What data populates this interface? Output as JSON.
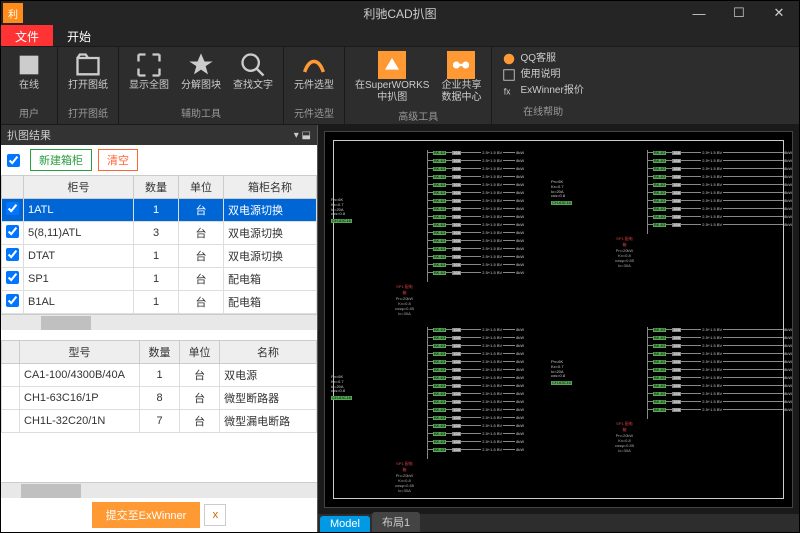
{
  "titlebar": {
    "title": "利驰CAD扒图"
  },
  "ribbon": {
    "tabs": {
      "file": "文件",
      "start": "开始"
    },
    "groups": {
      "user": {
        "online": "在线",
        "open": "打开图纸",
        "label": "用户",
        "label2": "打开图纸"
      },
      "aux": {
        "show": "显示全图",
        "explode": "分解图块",
        "find": "查找文字",
        "label": "辅助工具"
      },
      "type": {
        "btn": "元件选型",
        "label": "元件选型"
      },
      "sw": {
        "btn": "在SuperWORKS\n中扒图",
        "share": "企业共享\n数据中心",
        "label": "高级工具"
      },
      "help": {
        "qq": "QQ客服",
        "manual": "使用说明",
        "exwinner": "ExWinner报价",
        "label": "在线帮助"
      }
    }
  },
  "panel": {
    "title": "扒图结果",
    "new_cabinet": "新建箱柜",
    "clear": "清空",
    "table1": {
      "headers": {
        "col1": "柜号",
        "col2": "数量",
        "col3": "单位",
        "col4": "箱柜名称"
      },
      "rows": [
        {
          "id": "1ATL",
          "qty": "1",
          "unit": "台",
          "name": "双电源切换",
          "selected": true
        },
        {
          "id": "5(8,11)ATL",
          "qty": "3",
          "unit": "台",
          "name": "双电源切换"
        },
        {
          "id": "DTAT",
          "qty": "1",
          "unit": "台",
          "name": "双电源切换"
        },
        {
          "id": "SP1",
          "qty": "1",
          "unit": "台",
          "name": "配电箱"
        },
        {
          "id": "B1AL",
          "qty": "1",
          "unit": "台",
          "name": "配电箱"
        }
      ]
    },
    "table2": {
      "headers": {
        "col1": "型号",
        "col2": "数量",
        "col3": "单位",
        "col4": "名称"
      },
      "rows": [
        {
          "model": "CA1-100/4300B/40A",
          "qty": "1",
          "unit": "台",
          "name": "双电源"
        },
        {
          "model": "CH1-63C16/1P",
          "qty": "8",
          "unit": "台",
          "name": "微型断路器"
        },
        {
          "model": "CH1L-32C20/1N",
          "qty": "7",
          "unit": "台",
          "name": "微型漏电断路"
        }
      ]
    },
    "submit": "提交至ExWinner"
  },
  "canvas": {
    "tabs": {
      "model": "Model",
      "layout1": "布局1"
    }
  }
}
